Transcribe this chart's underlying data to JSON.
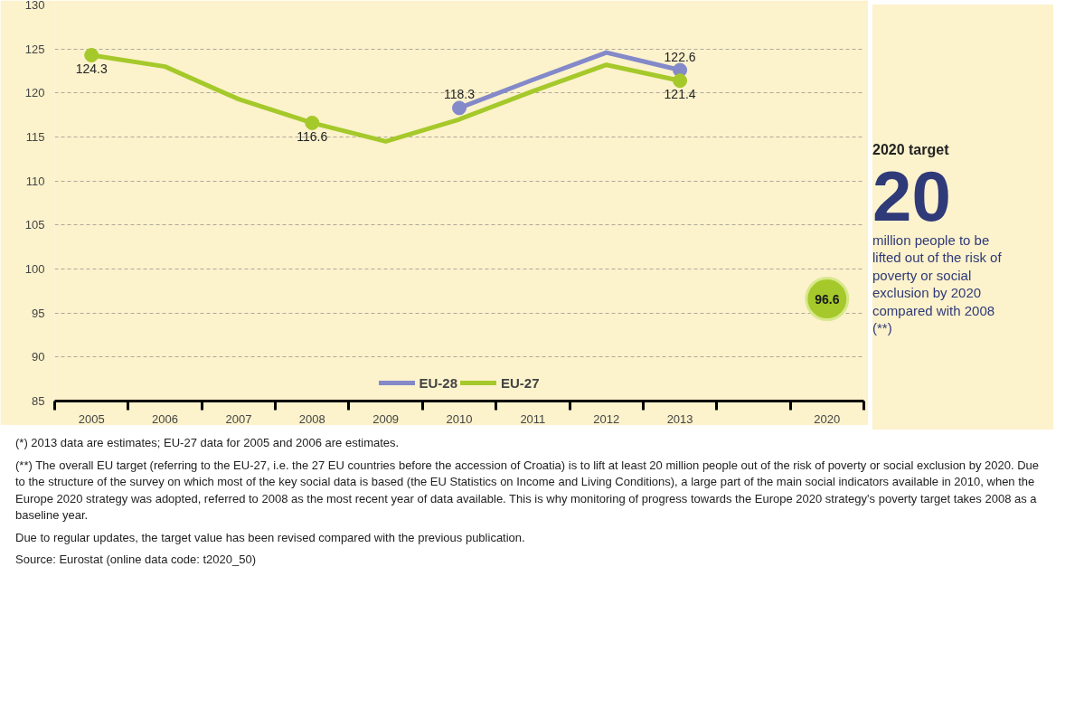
{
  "chart_data": {
    "type": "line",
    "categories": [
      "2005",
      "2006",
      "2007",
      "2008",
      "2009",
      "2010",
      "2011",
      "2012",
      "2013",
      null,
      "2020"
    ],
    "series": [
      {
        "name": "EU-28",
        "color": "#8389c9",
        "marker": "none",
        "values": [
          null,
          null,
          null,
          null,
          null,
          118.3,
          121.5,
          124.6,
          122.6,
          null,
          null
        ]
      },
      {
        "name": "EU-27",
        "color": "#a5c92a",
        "marker": "none",
        "values": [
          124.3,
          123.0,
          119.3,
          116.6,
          114.5,
          117.0,
          120.2,
          123.2,
          121.4,
          null,
          null
        ]
      },
      {
        "type": "scatter",
        "color": "#8389c9",
        "values": [
          null,
          null,
          null,
          null,
          null,
          118.3,
          null,
          null,
          122.6,
          null,
          null
        ],
        "value_labels": [
          null,
          null,
          null,
          null,
          null,
          "118.3",
          null,
          null,
          "122.6",
          null,
          null
        ]
      },
      {
        "type": "scatter",
        "color": "#a5c92a",
        "values": [
          124.3,
          null,
          null,
          116.6,
          null,
          null,
          null,
          null,
          121.4,
          null,
          null
        ],
        "value_labels": [
          "124.3",
          null,
          null,
          "116.6",
          null,
          null,
          null,
          null,
          "121.4",
          null,
          null
        ]
      },
      {
        "type": "scatter",
        "color": "#a5c92a",
        "values": [
          null,
          null,
          null,
          null,
          null,
          null,
          null,
          null,
          null,
          null,
          96.6
        ],
        "value_labels": [
          null,
          null,
          null,
          null,
          null,
          null,
          null,
          null,
          null,
          null,
          "96.6"
        ]
      }
    ],
    "ylim": [
      85,
      130
    ],
    "yticks": [
      85,
      90,
      95,
      100,
      105,
      110,
      115,
      120,
      125,
      130
    ],
    "grid": "y",
    "legend": "bottom",
    "marker": "circle",
    "line_style": "solid",
    "annotations": [
      "2020 target",
      "20",
      "million people to be lifted out of the risk of poverty or social exclusion by 2020 compared with 2008 (**)",
      "(*) 2013 data are estimates; EU-27 data for 2005 and 2006 are estimates.",
      "(**) The overall EU target (referring to the EU-27, i.e. the 27 EU countries before the accession of Croatia) is to lift at least 20 million people out of the risk of poverty or social exclusion by 2020. Due to the structure of the survey on which most of the key social data is based (the EU Statistics on Income and Living Conditions), a large part of the main social indicators available in 2010, when the Europe 2020 strategy was adopted, referred to 2008 as the most recent year of data available. This is why monitoring of progress towards the Europe 2020 strategy's poverty target takes 2008 as a baseline year.",
      "Due to regular updates, the target value has been revised compared with the previous publication.",
      "Source: Eurostat (online data code: t2020_50)"
    ]
  }
}
